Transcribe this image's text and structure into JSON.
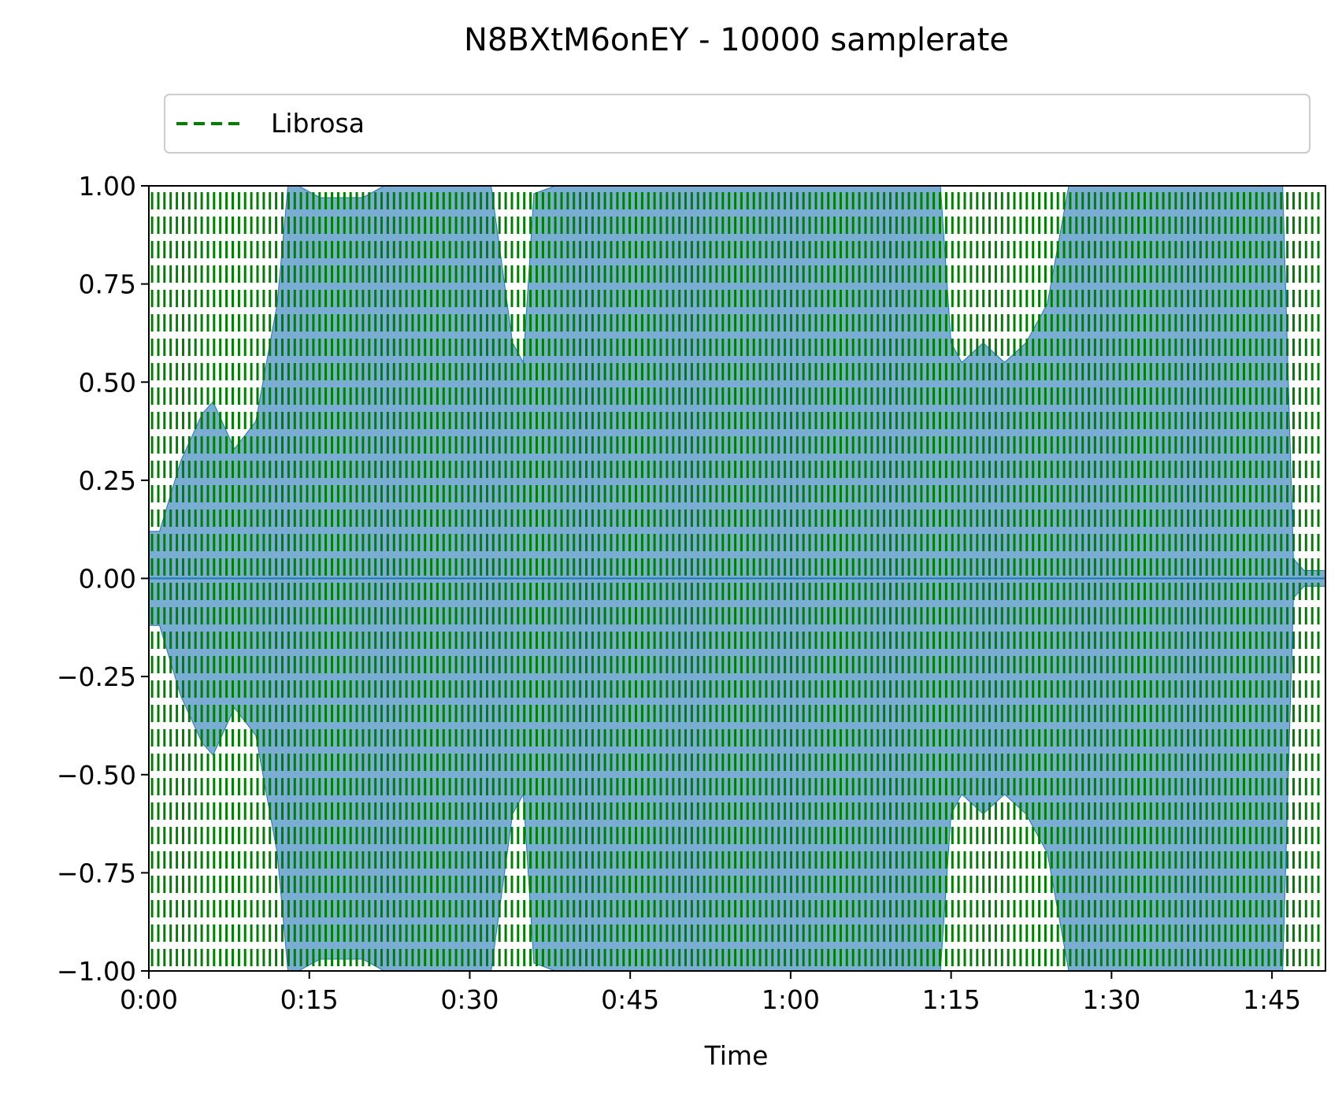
{
  "chart_data": {
    "type": "line",
    "title": "N8BXtM6onEY  -  10000 samplerate",
    "xlabel": "Time",
    "ylabel": "",
    "xlim": [
      0,
      110
    ],
    "ylim": [
      -1,
      1
    ],
    "x_ticks": [
      {
        "value": 0,
        "label": "0:00"
      },
      {
        "value": 15,
        "label": "0:15"
      },
      {
        "value": 30,
        "label": "0:30"
      },
      {
        "value": 45,
        "label": "0:45"
      },
      {
        "value": 60,
        "label": "1:00"
      },
      {
        "value": 75,
        "label": "1:15"
      },
      {
        "value": 90,
        "label": "1:30"
      },
      {
        "value": 105,
        "label": "1:45"
      }
    ],
    "y_ticks": [
      {
        "value": 1.0,
        "label": "1.00"
      },
      {
        "value": 0.75,
        "label": "0.75"
      },
      {
        "value": 0.5,
        "label": "0.50"
      },
      {
        "value": 0.25,
        "label": "0.25"
      },
      {
        "value": 0.0,
        "label": "0.00"
      },
      {
        "value": -0.25,
        "label": "−0.25"
      },
      {
        "value": -0.5,
        "label": "−0.50"
      },
      {
        "value": -0.75,
        "label": "−0.75"
      },
      {
        "value": -1.0,
        "label": "−1.00"
      }
    ],
    "grid": false,
    "legend": {
      "placement": "top",
      "entries": [
        {
          "label": "Librosa",
          "style": "dashed",
          "color": "#008000"
        }
      ]
    },
    "waveform": {
      "color": "#1f77b4",
      "envelope_time": [
        0,
        1,
        3,
        5,
        6,
        8,
        10,
        11,
        12,
        13,
        14,
        16,
        18,
        20,
        22,
        24,
        26,
        28,
        30,
        32,
        34,
        35,
        36,
        38,
        40,
        45,
        50,
        55,
        60,
        65,
        70,
        74,
        75,
        76,
        78,
        80,
        82,
        84,
        85,
        86,
        88,
        90,
        95,
        100,
        105,
        106,
        107,
        108,
        110
      ],
      "envelope_amplitude": [
        0.12,
        0.12,
        0.3,
        0.42,
        0.45,
        0.33,
        0.4,
        0.55,
        0.7,
        1.0,
        1.0,
        0.97,
        0.97,
        0.97,
        1.0,
        1.0,
        1.0,
        1.0,
        1.0,
        1.0,
        0.6,
        0.55,
        0.98,
        1.0,
        1.0,
        1.0,
        1.0,
        1.0,
        1.0,
        1.0,
        1.0,
        1.0,
        0.6,
        0.55,
        0.6,
        0.55,
        0.6,
        0.7,
        0.85,
        1.0,
        1.0,
        1.0,
        1.0,
        1.0,
        1.0,
        1.0,
        0.05,
        0.02,
        0.02
      ]
    },
    "librosa_beats": {
      "color": "#008000",
      "style": "dashed",
      "first": 0.3,
      "interval": 0.58,
      "last": 109.7
    }
  }
}
